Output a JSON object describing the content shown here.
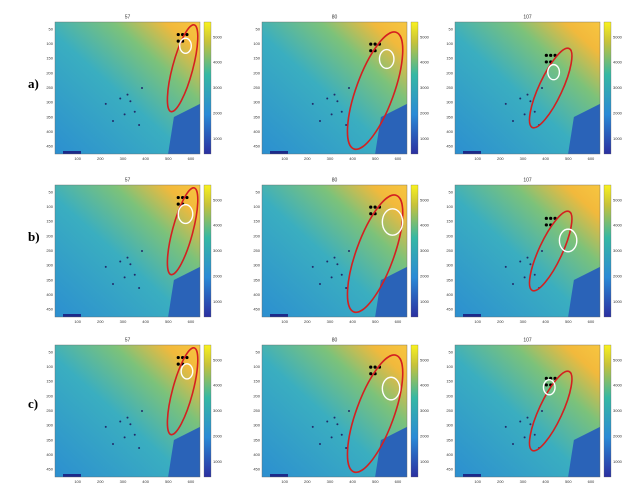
{
  "row_labels": [
    "a)",
    "b)",
    "c)"
  ],
  "panel_titles": [
    "57",
    "80",
    "107"
  ],
  "x_ticks": [
    "100",
    "200",
    "300",
    "400",
    "500",
    "600"
  ],
  "y_ticks": [
    "50",
    "100",
    "150",
    "200",
    "250",
    "300",
    "350",
    "400",
    "450"
  ],
  "colorbar_ticks": [
    "5000",
    "4000",
    "3000",
    "2000",
    "1000"
  ]
}
